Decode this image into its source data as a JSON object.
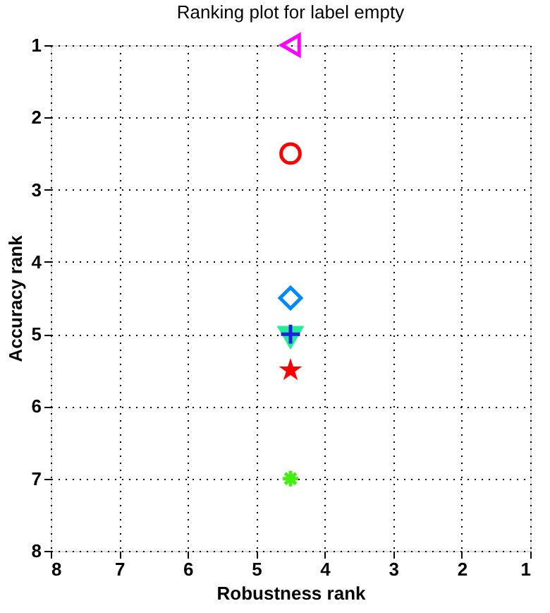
{
  "chart_data": {
    "type": "scatter",
    "title": "Ranking plot for label empty",
    "xlabel": "Robustness rank",
    "ylabel": "Accuracy rank",
    "xlim": [
      8,
      1
    ],
    "ylim": [
      8,
      1
    ],
    "xticks": [
      8,
      7,
      6,
      5,
      4,
      3,
      2,
      1
    ],
    "yticks": [
      8,
      7,
      6,
      5,
      4,
      3,
      2,
      1
    ],
    "grid": true,
    "x": [
      4.5
    ],
    "series": [
      {
        "color": "#ff00ff",
        "marker": "triangle",
        "values": [
          1
        ]
      },
      {
        "color": "#ff0000",
        "marker": "circle",
        "values": [
          2.5
        ]
      },
      {
        "color": "#0088ff",
        "marker": "diamond",
        "values": [
          4.5
        ]
      },
      {
        "color": "#22ee99",
        "marker": "triangle",
        "values": [
          5.05
        ]
      },
      {
        "color": "#2222dd",
        "marker": "cross",
        "values": [
          5
        ]
      },
      {
        "color": "#ff0000",
        "marker": "star",
        "values": [
          5.5
        ]
      },
      {
        "color": "#44ee11",
        "values": [
          7
        ]
      }
    ]
  }
}
